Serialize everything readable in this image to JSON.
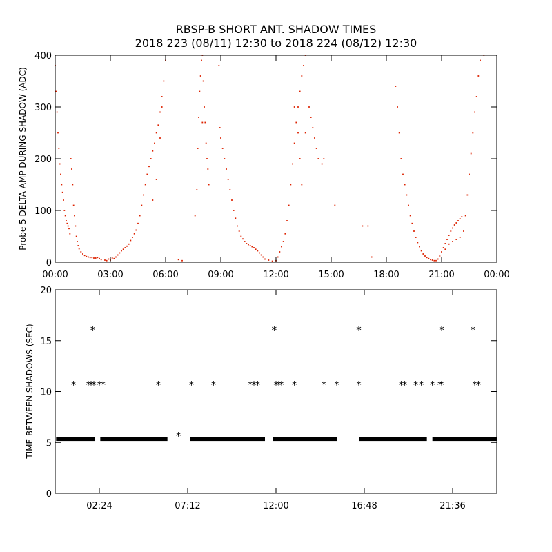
{
  "title_line1": "RBSP-B SHORT ANT. SHADOW TIMES",
  "title_line2": "2018 223 (08/11) 12:30 to 2018 224 (08/12) 12:30",
  "colors": {
    "top_points": "#dd2200",
    "bottom_points": "#000000",
    "axes": "#000000"
  },
  "chart_data": [
    {
      "type": "scatter",
      "title": "RBSP-B SHORT ANT. SHADOW TIMES",
      "subtitle": "2018 223 (08/11) 12:30 to 2018 224 (08/12) 12:30",
      "xlabel": "",
      "ylabel": "Probe 5 DELTA AMP DURING SHADOW (ADC)",
      "x_unit": "hours",
      "xlim": [
        0,
        24
      ],
      "ylim": [
        0,
        400
      ],
      "xticks": [
        0,
        3,
        6,
        9,
        12,
        15,
        18,
        21,
        24
      ],
      "xtick_labels": [
        "00:00",
        "03:00",
        "06:00",
        "09:00",
        "12:00",
        "15:00",
        "18:00",
        "21:00",
        "00:00"
      ],
      "yticks": [
        0,
        100,
        200,
        300,
        400
      ],
      "ytick_labels": [
        "0",
        "100",
        "200",
        "300",
        "400"
      ],
      "grid": false,
      "marker": "dot",
      "color": "#dd2200",
      "points": [
        [
          0.0,
          380
        ],
        [
          0.05,
          330
        ],
        [
          0.1,
          290
        ],
        [
          0.15,
          250
        ],
        [
          0.2,
          220
        ],
        [
          0.25,
          190
        ],
        [
          0.3,
          170
        ],
        [
          0.35,
          150
        ],
        [
          0.4,
          135
        ],
        [
          0.45,
          120
        ],
        [
          0.5,
          100
        ],
        [
          0.55,
          90
        ],
        [
          0.6,
          80
        ],
        [
          0.65,
          75
        ],
        [
          0.7,
          70
        ],
        [
          0.75,
          65
        ],
        [
          0.8,
          55
        ],
        [
          0.85,
          200
        ],
        [
          0.9,
          180
        ],
        [
          0.95,
          150
        ],
        [
          1.0,
          110
        ],
        [
          1.05,
          90
        ],
        [
          1.1,
          70
        ],
        [
          1.15,
          50
        ],
        [
          1.2,
          40
        ],
        [
          1.25,
          32
        ],
        [
          1.3,
          26
        ],
        [
          1.4,
          20
        ],
        [
          1.5,
          16
        ],
        [
          1.6,
          13
        ],
        [
          1.7,
          11
        ],
        [
          1.8,
          10
        ],
        [
          1.9,
          9
        ],
        [
          2.0,
          9
        ],
        [
          2.1,
          8
        ],
        [
          2.2,
          8
        ],
        [
          2.3,
          9
        ],
        [
          2.4,
          7
        ],
        [
          2.5,
          5
        ],
        [
          2.7,
          4
        ],
        [
          2.8,
          3
        ],
        [
          2.9,
          6
        ],
        [
          3.0,
          4
        ],
        [
          3.1,
          8
        ],
        [
          3.2,
          7
        ],
        [
          3.3,
          10
        ],
        [
          3.4,
          14
        ],
        [
          3.5,
          18
        ],
        [
          3.6,
          22
        ],
        [
          3.7,
          25
        ],
        [
          3.8,
          28
        ],
        [
          3.9,
          31
        ],
        [
          4.0,
          35
        ],
        [
          4.1,
          42
        ],
        [
          4.2,
          48
        ],
        [
          4.3,
          55
        ],
        [
          4.4,
          62
        ],
        [
          4.5,
          75
        ],
        [
          4.6,
          90
        ],
        [
          4.7,
          110
        ],
        [
          4.8,
          130
        ],
        [
          4.9,
          150
        ],
        [
          5.0,
          170
        ],
        [
          5.1,
          185
        ],
        [
          5.2,
          200
        ],
        [
          5.3,
          215
        ],
        [
          5.4,
          230
        ],
        [
          5.5,
          250
        ],
        [
          5.6,
          265
        ],
        [
          5.7,
          290
        ],
        [
          5.8,
          320
        ],
        [
          5.9,
          350
        ],
        [
          6.0,
          390
        ],
        [
          5.3,
          120
        ],
        [
          5.5,
          160
        ],
        [
          5.7,
          240
        ],
        [
          5.8,
          300
        ],
        [
          6.7,
          5
        ],
        [
          6.9,
          3
        ],
        [
          7.7,
          140
        ],
        [
          7.75,
          220
        ],
        [
          7.8,
          280
        ],
        [
          7.85,
          330
        ],
        [
          7.9,
          360
        ],
        [
          7.95,
          390
        ],
        [
          8.0,
          400
        ],
        [
          8.05,
          350
        ],
        [
          8.1,
          300
        ],
        [
          8.15,
          270
        ],
        [
          8.2,
          230
        ],
        [
          8.25,
          200
        ],
        [
          8.3,
          180
        ],
        [
          8.35,
          150
        ],
        [
          8.0,
          270
        ],
        [
          7.6,
          90
        ],
        [
          8.9,
          380
        ],
        [
          8.95,
          260
        ],
        [
          9.0,
          240
        ],
        [
          9.1,
          220
        ],
        [
          9.2,
          200
        ],
        [
          9.3,
          180
        ],
        [
          9.4,
          160
        ],
        [
          9.5,
          140
        ],
        [
          9.6,
          120
        ],
        [
          9.7,
          100
        ],
        [
          9.8,
          85
        ],
        [
          9.9,
          70
        ],
        [
          10.0,
          60
        ],
        [
          10.1,
          50
        ],
        [
          10.2,
          45
        ],
        [
          10.3,
          40
        ],
        [
          10.4,
          36
        ],
        [
          10.5,
          34
        ],
        [
          10.6,
          32
        ],
        [
          10.7,
          30
        ],
        [
          10.8,
          28
        ],
        [
          10.9,
          25
        ],
        [
          11.0,
          22
        ],
        [
          11.1,
          18
        ],
        [
          11.2,
          14
        ],
        [
          11.3,
          10
        ],
        [
          11.4,
          6
        ],
        [
          11.6,
          4
        ],
        [
          11.8,
          2
        ],
        [
          12.0,
          3
        ],
        [
          12.1,
          10
        ],
        [
          12.2,
          20
        ],
        [
          12.3,
          30
        ],
        [
          12.4,
          40
        ],
        [
          12.5,
          55
        ],
        [
          12.6,
          80
        ],
        [
          12.7,
          110
        ],
        [
          12.8,
          150
        ],
        [
          12.9,
          190
        ],
        [
          13.0,
          230
        ],
        [
          13.1,
          270
        ],
        [
          13.2,
          300
        ],
        [
          13.3,
          330
        ],
        [
          13.4,
          360
        ],
        [
          13.5,
          380
        ],
        [
          13.6,
          400
        ],
        [
          13.0,
          300
        ],
        [
          13.2,
          250
        ],
        [
          13.3,
          200
        ],
        [
          13.4,
          150
        ],
        [
          13.6,
          250
        ],
        [
          13.8,
          300
        ],
        [
          13.9,
          280
        ],
        [
          14.0,
          260
        ],
        [
          14.1,
          240
        ],
        [
          14.2,
          220
        ],
        [
          14.3,
          200
        ],
        [
          14.5,
          190
        ],
        [
          14.6,
          200
        ],
        [
          15.2,
          110
        ],
        [
          16.7,
          70
        ],
        [
          17.0,
          70
        ],
        [
          17.2,
          10
        ],
        [
          18.5,
          340
        ],
        [
          18.6,
          300
        ],
        [
          18.7,
          250
        ],
        [
          18.8,
          200
        ],
        [
          18.9,
          170
        ],
        [
          19.0,
          150
        ],
        [
          19.1,
          130
        ],
        [
          19.2,
          110
        ],
        [
          19.3,
          90
        ],
        [
          19.4,
          75
        ],
        [
          19.5,
          60
        ],
        [
          19.6,
          48
        ],
        [
          19.7,
          38
        ],
        [
          19.8,
          30
        ],
        [
          19.9,
          22
        ],
        [
          20.0,
          16
        ],
        [
          20.1,
          12
        ],
        [
          20.2,
          9
        ],
        [
          20.3,
          7
        ],
        [
          20.4,
          5
        ],
        [
          20.5,
          4
        ],
        [
          20.6,
          3
        ],
        [
          20.7,
          3
        ],
        [
          20.8,
          6
        ],
        [
          20.9,
          12
        ],
        [
          21.0,
          20
        ],
        [
          21.1,
          28
        ],
        [
          21.2,
          36
        ],
        [
          21.3,
          44
        ],
        [
          21.4,
          52
        ],
        [
          21.5,
          60
        ],
        [
          21.6,
          66
        ],
        [
          21.7,
          72
        ],
        [
          21.8,
          76
        ],
        [
          21.9,
          80
        ],
        [
          22.0,
          84
        ],
        [
          22.1,
          88
        ],
        [
          21.2,
          25
        ],
        [
          21.4,
          35
        ],
        [
          21.6,
          40
        ],
        [
          21.8,
          44
        ],
        [
          22.0,
          48
        ],
        [
          22.2,
          60
        ],
        [
          22.3,
          90
        ],
        [
          22.4,
          130
        ],
        [
          22.5,
          170
        ],
        [
          22.6,
          210
        ],
        [
          22.7,
          250
        ],
        [
          22.8,
          290
        ],
        [
          22.9,
          320
        ],
        [
          23.0,
          360
        ],
        [
          23.1,
          390
        ],
        [
          23.3,
          400
        ]
      ]
    },
    {
      "type": "scatter",
      "xlabel": "",
      "ylabel": "TIME BETWEEN SHADOWS (SEC)",
      "x_unit": "hours",
      "xlim": [
        0,
        24
      ],
      "ylim": [
        0,
        20
      ],
      "xticks": [
        2.4,
        7.2,
        12.0,
        16.8,
        21.6
      ],
      "xtick_labels": [
        "02:24",
        "07:12",
        "12:00",
        "16:48",
        "21:36"
      ],
      "yticks": [
        0,
        5,
        10,
        15,
        20
      ],
      "ytick_labels": [
        "0",
        "5",
        "10",
        "15",
        "20"
      ],
      "grid": false,
      "marker": "asterisk",
      "color": "#000000",
      "baseline": {
        "y": 5.35,
        "ranges": [
          [
            0.05,
            2.15
          ],
          [
            2.45,
            6.1
          ],
          [
            7.35,
            11.4
          ],
          [
            11.85,
            15.3
          ],
          [
            16.5,
            20.2
          ],
          [
            20.5,
            24.0
          ]
        ]
      },
      "points": [
        [
          1.0,
          10.7
        ],
        [
          1.8,
          10.7
        ],
        [
          1.95,
          10.7
        ],
        [
          2.05,
          16.1
        ],
        [
          2.1,
          10.7
        ],
        [
          2.4,
          10.7
        ],
        [
          2.6,
          10.7
        ],
        [
          5.6,
          10.7
        ],
        [
          6.7,
          5.7
        ],
        [
          7.4,
          10.7
        ],
        [
          8.6,
          10.7
        ],
        [
          10.6,
          10.7
        ],
        [
          10.8,
          10.7
        ],
        [
          11.0,
          10.7
        ],
        [
          11.9,
          16.1
        ],
        [
          12.0,
          10.7
        ],
        [
          12.15,
          10.7
        ],
        [
          12.3,
          10.7
        ],
        [
          13.0,
          10.7
        ],
        [
          14.6,
          10.7
        ],
        [
          15.3,
          10.7
        ],
        [
          16.5,
          16.1
        ],
        [
          16.5,
          10.7
        ],
        [
          18.8,
          10.7
        ],
        [
          19.0,
          10.7
        ],
        [
          19.6,
          10.7
        ],
        [
          19.9,
          10.7
        ],
        [
          20.5,
          10.7
        ],
        [
          20.9,
          10.7
        ],
        [
          21.0,
          16.1
        ],
        [
          21.0,
          10.7
        ],
        [
          22.7,
          16.1
        ],
        [
          22.8,
          10.7
        ],
        [
          23.0,
          10.7
        ]
      ]
    }
  ]
}
